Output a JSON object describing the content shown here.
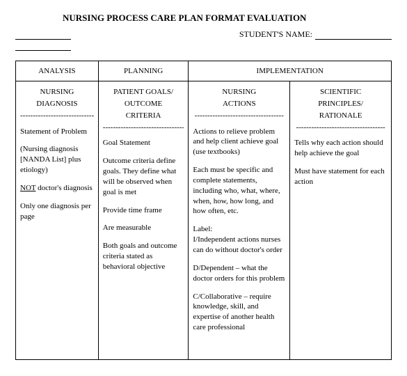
{
  "title": "NURSING PROCESS CARE PLAN FORMAT EVALUATION",
  "student_label": "STUDENT'S NAME:",
  "top_headers": {
    "analysis": "ANALYSIS",
    "planning": "PLANNING",
    "implementation": "IMPLEMENTATION"
  },
  "sub_headers": {
    "col1_l1": "NURSING",
    "col1_l2": "DIAGNOSIS",
    "col2_l1": "PATIENT  GOALS/",
    "col2_l2": "OUTCOME",
    "col2_l3": "CRITERIA",
    "col3_l1": "NURSING",
    "col3_l2": "ACTIONS",
    "col4_l1": "SCIENTIFIC",
    "col4_l2": "PRINCIPLES/",
    "col4_l3": "RATIONALE"
  },
  "dashes": "-----------------------------------",
  "col1": {
    "p1": "Statement of Problem",
    "p2a": "(Nursing diagnosis [NANDA List] plus etiology)",
    "p3_pre": "NOT",
    "p3_post": " doctor's diagnosis",
    "p4": "Only one diagnosis per page"
  },
  "col2": {
    "p1": "Goal Statement",
    "p2": "Outcome criteria define goals.  They define what will be observed when goal is met",
    "p3": "Provide time frame",
    "p4": "Are measurable",
    "p5": "Both goals and outcome criteria stated as behavioral objective"
  },
  "col3": {
    "p1": "Actions to relieve problem and help client achieve goal (use textbooks)",
    "p2": "Each must be specific and complete statements, including who, what, where, when, how, how long, and how often, etc.",
    "p3a": "Label:",
    "p3b": "I/Independent actions nurses can do without doctor's order",
    "p4": "D/Dependent – what the doctor orders for this problem",
    "p5": "C/Collaborative – require knowledge, skill, and expertise of another health care professional"
  },
  "col4": {
    "p1": "Tells why each action should help achieve the goal",
    "p2": "Must have statement for each action"
  }
}
